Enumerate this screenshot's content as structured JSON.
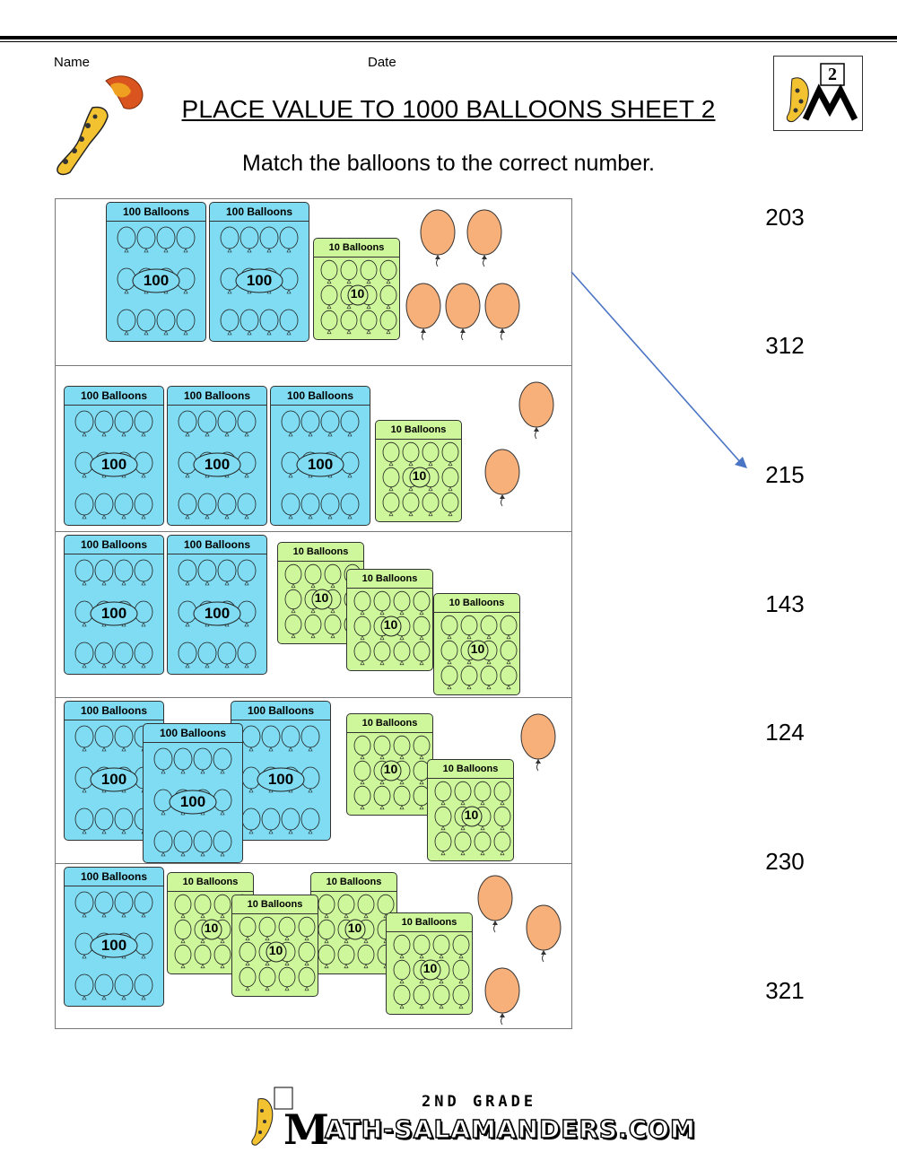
{
  "header": {
    "name_label": "Name",
    "date_label": "Date",
    "title": "PLACE VALUE TO 1000 BALLOONS SHEET 2",
    "subtitle": "Match the balloons to the correct number.",
    "grade_badge": "2"
  },
  "card_labels": {
    "hundred": "100 Balloons",
    "ten": "10 Balloons",
    "hundred_value": "100",
    "ten_value": "10"
  },
  "answers": [
    "203",
    "312",
    "215",
    "143",
    "124",
    "230",
    "321"
  ],
  "rows": [
    {
      "hundreds": 2,
      "tens": 1,
      "ones": 5
    },
    {
      "hundreds": 3,
      "tens": 1,
      "ones": 2
    },
    {
      "hundreds": 2,
      "tens": 3,
      "ones": 0
    },
    {
      "hundreds": 3,
      "tens": 2,
      "ones": 1
    },
    {
      "hundreds": 1,
      "tens": 4,
      "ones": 3
    }
  ],
  "example_match": {
    "row": 1,
    "answer": "215"
  },
  "footer": {
    "grade": "2ND GRADE",
    "site": "ATH-SALAMANDERS.COM"
  },
  "colors": {
    "hundred_card": "#7fdcf2",
    "ten_card": "#cdf79a",
    "balloon": "#f7b07a",
    "arrow": "#4a74c4"
  }
}
